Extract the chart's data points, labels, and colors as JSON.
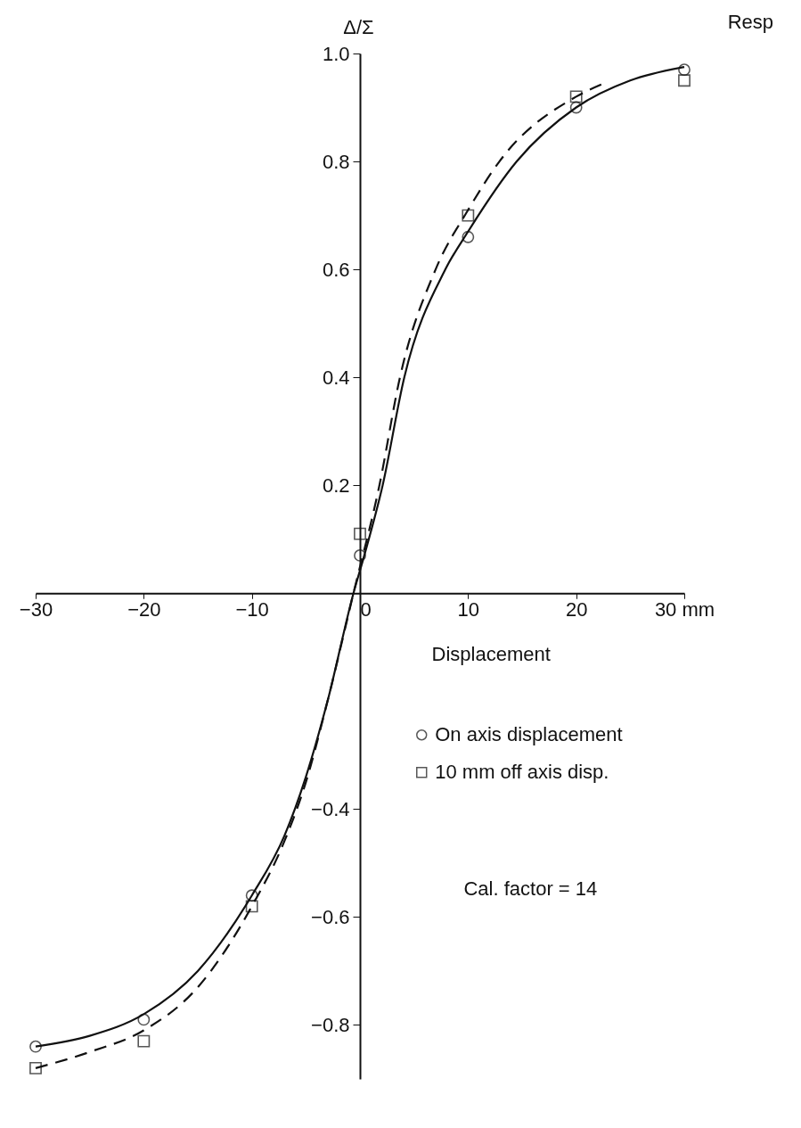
{
  "chart_data": {
    "type": "scatter",
    "title": "Resp",
    "xlabel": "Displacement",
    "ylabel": "Δ/Σ",
    "xlim": [
      -30,
      30
    ],
    "xticks": [
      -30,
      -20,
      -10,
      0,
      10,
      20,
      {
        "value": 30,
        "label": "30 mm"
      }
    ],
    "ylim": [
      -0.9,
      1.0
    ],
    "yticks": [
      -0.8,
      -0.6,
      -0.4,
      0.2,
      0.4,
      0.6,
      0.8,
      {
        "value": 1.0,
        "label": "1.0"
      }
    ],
    "grid": false,
    "legend": "right",
    "annotations": [
      "Cal. factor = 14"
    ],
    "series": [
      {
        "name": "On axis displacement",
        "marker": "circle",
        "color": "#111111",
        "x": [
          -30,
          -20,
          -10,
          0,
          10,
          20,
          30
        ],
        "values": [
          -0.84,
          -0.79,
          -0.56,
          0.07,
          0.66,
          0.9,
          0.97
        ]
      },
      {
        "name": "10 mm off axis disp.",
        "marker": "square",
        "color": "#111111",
        "x": [
          -30,
          -20,
          -10,
          0,
          10,
          20,
          30
        ],
        "values": [
          -0.88,
          -0.83,
          -0.58,
          0.11,
          0.7,
          0.92,
          0.95
        ]
      },
      {
        "type": "line",
        "marker": "none",
        "line_style": "solid",
        "color": "#111111",
        "x": [
          -30,
          -25,
          -20,
          -15,
          -10,
          -7,
          -5,
          -3,
          -0.6,
          0.4,
          2.1,
          4.1,
          7.9,
          10,
          14.5,
          20,
          25,
          30
        ],
        "values": [
          -0.84,
          -0.82,
          -0.78,
          -0.7,
          -0.56,
          -0.45,
          -0.34,
          -0.2,
          0,
          0.07,
          0.2,
          0.4,
          0.6,
          0.67,
          0.8,
          0.9,
          0.95,
          0.975
        ]
      },
      {
        "type": "line",
        "marker": "none",
        "line_style": "dashed",
        "color": "#111111",
        "x": [
          -30,
          -25,
          -20,
          -15,
          -10,
          -7,
          -5,
          -3,
          -0.6,
          1.8,
          3.7,
          7,
          10,
          12.9,
          20,
          22.6
        ],
        "values": [
          -0.88,
          -0.85,
          -0.81,
          -0.73,
          -0.58,
          -0.46,
          -0.35,
          -0.2,
          0,
          0.2,
          0.4,
          0.6,
          0.71,
          0.8,
          0.92,
          0.945
        ]
      }
    ]
  }
}
